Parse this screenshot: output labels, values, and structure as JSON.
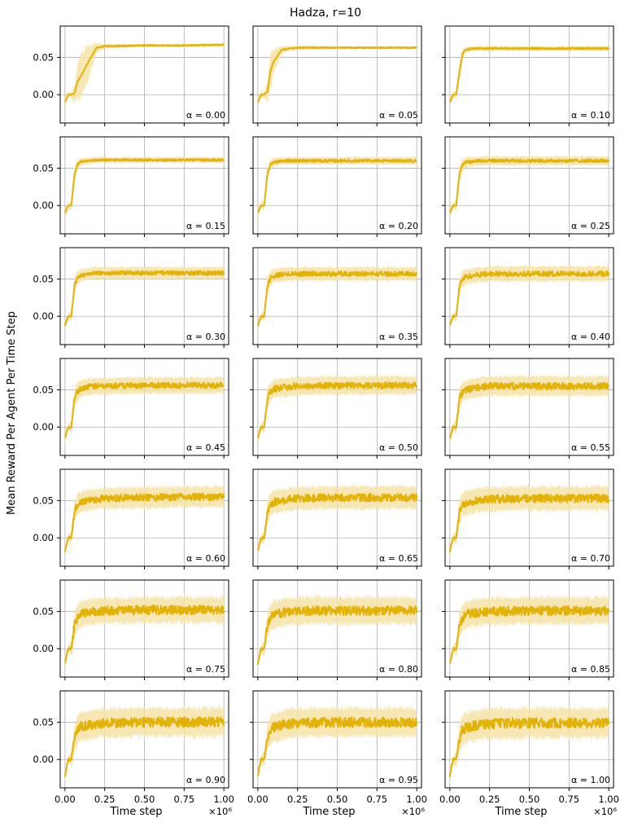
{
  "colors": {
    "line": "#e3b207",
    "band": "#f6e3a7",
    "grid": "#b0b0b0",
    "axes": "#000000"
  },
  "chart_data": {
    "type": "line",
    "title": "Hadza, r=10",
    "xlabel": "Time step",
    "ylabel": "Mean Reward Per Agent Per Time Step",
    "x_exponent_label": "×10⁶",
    "x_ticks": [
      0.0,
      0.25,
      0.5,
      0.75,
      1.0
    ],
    "x_tick_labels": [
      "0.00",
      "0.25",
      "0.50",
      "0.75",
      "1.00"
    ],
    "y_ticks": [
      0.0,
      0.05
    ],
    "y_tick_labels": [
      "0.00",
      "0.05"
    ],
    "xlim": [
      -0.03,
      1.03
    ],
    "ylim": [
      -0.038,
      0.092
    ],
    "grid": true,
    "layout": "7 rows x 3 columns, shared axes",
    "x": [
      0.0,
      0.02,
      0.04,
      0.06,
      0.08,
      0.1,
      0.15,
      0.2,
      0.25,
      0.5,
      0.75,
      1.0
    ],
    "panels": [
      {
        "alpha": "α = 0.00",
        "mean": [
          -0.01,
          0.0,
          0.0,
          0.002,
          0.018,
          0.025,
          0.045,
          0.063,
          0.065,
          0.066,
          0.066,
          0.067
        ],
        "band": [
          0.008,
          0.004,
          0.004,
          0.012,
          0.025,
          0.03,
          0.022,
          0.006,
          0.003,
          0.002,
          0.002,
          0.002
        ]
      },
      {
        "alpha": "α = 0.05",
        "mean": [
          -0.01,
          0.0,
          0.0,
          0.004,
          0.032,
          0.045,
          0.06,
          0.062,
          0.063,
          0.063,
          0.063,
          0.063
        ],
        "band": [
          0.008,
          0.004,
          0.004,
          0.015,
          0.022,
          0.015,
          0.005,
          0.003,
          0.003,
          0.002,
          0.002,
          0.002
        ]
      },
      {
        "alpha": "α = 0.10",
        "mean": [
          -0.01,
          0.0,
          0.0,
          0.03,
          0.055,
          0.06,
          0.062,
          0.062,
          0.062,
          0.062,
          0.062,
          0.062
        ],
        "band": [
          0.008,
          0.004,
          0.005,
          0.012,
          0.006,
          0.004,
          0.003,
          0.003,
          0.003,
          0.003,
          0.003,
          0.003
        ]
      },
      {
        "alpha": "α = 0.15",
        "mean": [
          -0.01,
          0.0,
          0.0,
          0.042,
          0.055,
          0.059,
          0.06,
          0.061,
          0.061,
          0.061,
          0.061,
          0.061
        ],
        "band": [
          0.008,
          0.004,
          0.006,
          0.01,
          0.006,
          0.005,
          0.004,
          0.004,
          0.004,
          0.004,
          0.004,
          0.004
        ]
      },
      {
        "alpha": "α = 0.20",
        "mean": [
          -0.01,
          0.0,
          0.0,
          0.042,
          0.055,
          0.058,
          0.06,
          0.06,
          0.06,
          0.06,
          0.06,
          0.06
        ],
        "band": [
          0.008,
          0.004,
          0.006,
          0.01,
          0.007,
          0.006,
          0.005,
          0.005,
          0.005,
          0.005,
          0.005,
          0.005
        ]
      },
      {
        "alpha": "α = 0.25",
        "mean": [
          -0.01,
          0.0,
          0.0,
          0.042,
          0.054,
          0.058,
          0.059,
          0.06,
          0.06,
          0.06,
          0.06,
          0.06
        ],
        "band": [
          0.008,
          0.004,
          0.007,
          0.011,
          0.008,
          0.007,
          0.006,
          0.006,
          0.006,
          0.006,
          0.006,
          0.006
        ]
      },
      {
        "alpha": "α = 0.30",
        "mean": [
          -0.012,
          0.0,
          0.0,
          0.042,
          0.052,
          0.055,
          0.057,
          0.058,
          0.058,
          0.058,
          0.058,
          0.058
        ],
        "band": [
          0.008,
          0.004,
          0.007,
          0.011,
          0.009,
          0.008,
          0.008,
          0.008,
          0.008,
          0.008,
          0.008,
          0.008
        ]
      },
      {
        "alpha": "α = 0.35",
        "mean": [
          -0.012,
          0.0,
          0.0,
          0.041,
          0.051,
          0.054,
          0.056,
          0.057,
          0.057,
          0.057,
          0.057,
          0.057
        ],
        "band": [
          0.008,
          0.004,
          0.007,
          0.012,
          0.01,
          0.009,
          0.009,
          0.009,
          0.009,
          0.009,
          0.009,
          0.009
        ]
      },
      {
        "alpha": "α = 0.40",
        "mean": [
          -0.012,
          0.0,
          0.0,
          0.04,
          0.05,
          0.053,
          0.055,
          0.056,
          0.057,
          0.057,
          0.057,
          0.057
        ],
        "band": [
          0.008,
          0.004,
          0.008,
          0.012,
          0.011,
          0.01,
          0.01,
          0.01,
          0.01,
          0.01,
          0.01,
          0.01
        ]
      },
      {
        "alpha": "α = 0.45",
        "mean": [
          -0.015,
          0.0,
          0.0,
          0.04,
          0.048,
          0.052,
          0.054,
          0.055,
          0.055,
          0.056,
          0.056,
          0.056
        ],
        "band": [
          0.008,
          0.004,
          0.008,
          0.013,
          0.012,
          0.011,
          0.011,
          0.011,
          0.011,
          0.011,
          0.011,
          0.011
        ]
      },
      {
        "alpha": "α = 0.50",
        "mean": [
          -0.015,
          0.0,
          0.0,
          0.039,
          0.048,
          0.051,
          0.053,
          0.054,
          0.055,
          0.056,
          0.056,
          0.056
        ],
        "band": [
          0.008,
          0.004,
          0.008,
          0.013,
          0.012,
          0.012,
          0.012,
          0.012,
          0.012,
          0.012,
          0.012,
          0.012
        ]
      },
      {
        "alpha": "α = 0.55",
        "mean": [
          -0.015,
          0.0,
          0.0,
          0.038,
          0.047,
          0.05,
          0.052,
          0.054,
          0.055,
          0.055,
          0.055,
          0.055
        ],
        "band": [
          0.008,
          0.004,
          0.009,
          0.014,
          0.013,
          0.013,
          0.013,
          0.013,
          0.013,
          0.013,
          0.013,
          0.013
        ]
      },
      {
        "alpha": "α = 0.60",
        "mean": [
          -0.018,
          0.0,
          0.0,
          0.036,
          0.045,
          0.048,
          0.051,
          0.052,
          0.053,
          0.054,
          0.055,
          0.055
        ],
        "band": [
          0.008,
          0.004,
          0.009,
          0.014,
          0.014,
          0.014,
          0.014,
          0.014,
          0.014,
          0.014,
          0.014,
          0.014
        ]
      },
      {
        "alpha": "α = 0.65",
        "mean": [
          -0.018,
          0.0,
          0.0,
          0.035,
          0.045,
          0.048,
          0.05,
          0.052,
          0.053,
          0.054,
          0.054,
          0.054
        ],
        "band": [
          0.008,
          0.004,
          0.009,
          0.015,
          0.015,
          0.015,
          0.015,
          0.015,
          0.015,
          0.015,
          0.015,
          0.015
        ]
      },
      {
        "alpha": "α = 0.70",
        "mean": [
          -0.018,
          0.0,
          0.0,
          0.034,
          0.044,
          0.047,
          0.05,
          0.051,
          0.052,
          0.053,
          0.053,
          0.053
        ],
        "band": [
          0.008,
          0.004,
          0.01,
          0.015,
          0.016,
          0.016,
          0.016,
          0.016,
          0.016,
          0.016,
          0.016,
          0.016
        ]
      },
      {
        "alpha": "α = 0.75",
        "mean": [
          -0.02,
          0.0,
          0.0,
          0.032,
          0.042,
          0.046,
          0.049,
          0.05,
          0.051,
          0.052,
          0.052,
          0.052
        ],
        "band": [
          0.008,
          0.004,
          0.01,
          0.016,
          0.017,
          0.017,
          0.017,
          0.017,
          0.017,
          0.017,
          0.017,
          0.017
        ]
      },
      {
        "alpha": "α = 0.80",
        "mean": [
          -0.02,
          0.0,
          0.0,
          0.032,
          0.042,
          0.045,
          0.048,
          0.05,
          0.051,
          0.051,
          0.051,
          0.051
        ],
        "band": [
          0.008,
          0.004,
          0.01,
          0.016,
          0.017,
          0.018,
          0.018,
          0.018,
          0.018,
          0.018,
          0.018,
          0.018
        ]
      },
      {
        "alpha": "α = 0.85",
        "mean": [
          -0.02,
          0.0,
          0.0,
          0.031,
          0.041,
          0.045,
          0.048,
          0.049,
          0.05,
          0.051,
          0.051,
          0.051
        ],
        "band": [
          0.008,
          0.004,
          0.011,
          0.017,
          0.018,
          0.018,
          0.018,
          0.018,
          0.018,
          0.018,
          0.018,
          0.018
        ]
      },
      {
        "alpha": "α = 0.90",
        "mean": [
          -0.022,
          0.0,
          0.0,
          0.03,
          0.04,
          0.044,
          0.046,
          0.048,
          0.049,
          0.05,
          0.05,
          0.05
        ],
        "band": [
          0.008,
          0.004,
          0.011,
          0.017,
          0.019,
          0.019,
          0.019,
          0.019,
          0.019,
          0.019,
          0.019,
          0.019
        ]
      },
      {
        "alpha": "α = 0.95",
        "mean": [
          -0.022,
          0.0,
          0.0,
          0.03,
          0.04,
          0.043,
          0.046,
          0.048,
          0.049,
          0.05,
          0.05,
          0.05
        ],
        "band": [
          0.008,
          0.004,
          0.011,
          0.018,
          0.019,
          0.019,
          0.019,
          0.019,
          0.019,
          0.019,
          0.019,
          0.019
        ]
      },
      {
        "alpha": "α = 1.00",
        "mean": [
          -0.022,
          0.0,
          0.0,
          0.029,
          0.039,
          0.043,
          0.045,
          0.047,
          0.048,
          0.049,
          0.049,
          0.049
        ],
        "band": [
          0.008,
          0.004,
          0.012,
          0.018,
          0.02,
          0.02,
          0.02,
          0.02,
          0.02,
          0.02,
          0.02,
          0.02
        ]
      }
    ]
  }
}
